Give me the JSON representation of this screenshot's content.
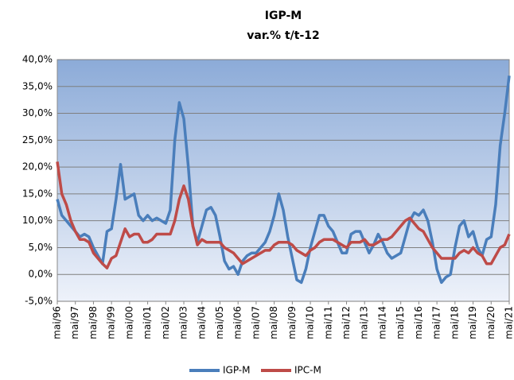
{
  "chart_data": {
    "type": "line",
    "title": "IGP-M",
    "subtitle": "var.% t/t-12",
    "categories": [
      "mai/96",
      null,
      null,
      null,
      "mai/97",
      null,
      null,
      null,
      "mai/98",
      null,
      null,
      null,
      "mai/99",
      null,
      null,
      null,
      "mai/00",
      null,
      null,
      null,
      "mai/01",
      null,
      null,
      null,
      "mai/02",
      null,
      null,
      null,
      "mai/03",
      null,
      null,
      null,
      "mai/04",
      null,
      null,
      null,
      "mai/05",
      null,
      null,
      null,
      "mai/06",
      null,
      null,
      null,
      "mai/07",
      null,
      null,
      null,
      "mai/08",
      null,
      null,
      null,
      "mai/09",
      null,
      null,
      null,
      "mai/10",
      null,
      null,
      null,
      "mai/11",
      null,
      null,
      null,
      "mai/12",
      null,
      null,
      null,
      "mai/13",
      null,
      null,
      null,
      "mai/14",
      null,
      null,
      null,
      "mai/15",
      null,
      null,
      null,
      "mai/16",
      null,
      null,
      null,
      "mai/17",
      null,
      null,
      null,
      "mai/18",
      null,
      null,
      null,
      "mai/19",
      null,
      null,
      null,
      "mai/20",
      null,
      null,
      null,
      "mai/21"
    ],
    "series": [
      {
        "name": "IGP-M",
        "color": "#4a7ebb",
        "values": [
          14,
          11,
          10,
          9,
          8,
          7,
          7.5,
          7,
          5,
          3.5,
          2,
          8,
          8.5,
          14,
          20.5,
          14,
          14.5,
          15,
          11,
          10,
          11,
          10,
          10.5,
          10,
          9.5,
          12,
          25,
          32,
          29,
          20,
          9,
          6,
          9,
          12,
          12.5,
          11,
          7,
          2.5,
          1,
          1.5,
          0,
          2.5,
          3.5,
          4,
          4,
          5,
          6,
          8,
          11,
          15,
          12,
          7,
          3,
          -1,
          -1.5,
          1,
          5,
          8,
          11,
          11,
          9,
          8,
          6,
          4,
          4,
          7.5,
          8,
          8,
          6,
          4,
          5.5,
          7.5,
          6,
          4,
          3,
          3.5,
          4,
          7,
          10,
          11.5,
          11,
          12,
          10,
          6,
          1,
          -1.5,
          -0.5,
          0,
          5,
          9,
          10,
          7,
          8,
          5,
          3.5,
          6.5,
          7,
          13,
          24,
          30,
          37
        ]
      },
      {
        "name": "IPC-M",
        "color": "#be4b48",
        "values": [
          21,
          15,
          13,
          10,
          8,
          6.5,
          6.5,
          6,
          4,
          3,
          2,
          1.2,
          3,
          3.5,
          6,
          8.5,
          7,
          7.5,
          7.5,
          6,
          6,
          6.5,
          7.5,
          7.5,
          7.5,
          7.5,
          10,
          14,
          16.5,
          14,
          9,
          5.5,
          6.5,
          6,
          6,
          6,
          6,
          5,
          4.5,
          4,
          3,
          2,
          2.5,
          3,
          3.5,
          4,
          4.5,
          4.5,
          5.5,
          6,
          6,
          6,
          5.5,
          4.5,
          4,
          3.5,
          4.5,
          5,
          6,
          6.5,
          6.5,
          6.5,
          6,
          5.5,
          5,
          6,
          6,
          6,
          6.5,
          5.5,
          5.5,
          6,
          6.5,
          6.5,
          7,
          8,
          9,
          10,
          10.5,
          9.5,
          8.5,
          8,
          6.5,
          5,
          4,
          3,
          3,
          3,
          3,
          4,
          4.5,
          4,
          5,
          4,
          3.5,
          2,
          2,
          3.5,
          5,
          5.5,
          7.5
        ]
      }
    ],
    "ylim": [
      -5,
      40
    ],
    "yticks": [
      {
        "value": -5,
        "label": "-5,0%"
      },
      {
        "value": 0,
        "label": "0,0%"
      },
      {
        "value": 5,
        "label": "5,0%"
      },
      {
        "value": 10,
        "label": "10,0%"
      },
      {
        "value": 15,
        "label": "15,0%"
      },
      {
        "value": 20,
        "label": "20,0%"
      },
      {
        "value": 25,
        "label": "25,0%"
      },
      {
        "value": 30,
        "label": "30,0%"
      },
      {
        "value": 35,
        "label": "35,0%"
      },
      {
        "value": 40,
        "label": "40,0%"
      }
    ],
    "grid": true,
    "legend": "bottom"
  }
}
